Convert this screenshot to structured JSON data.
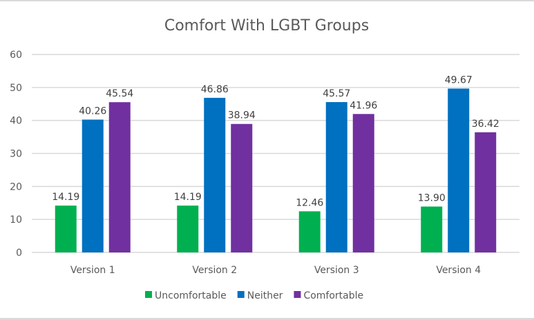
{
  "chart_data": {
    "type": "bar",
    "title": "Comfort With LGBT Groups",
    "xlabel": "",
    "ylabel": "",
    "categories": [
      "Version 1",
      "Version 2",
      "Version 3",
      "Version 4"
    ],
    "series": [
      {
        "name": "Uncomfortable",
        "color": "#00b050",
        "values": [
          14.19,
          14.19,
          12.46,
          13.9
        ],
        "labels": [
          "14.19",
          "14.19",
          "12.46",
          "13.90"
        ]
      },
      {
        "name": "Neither",
        "color": "#0070c0",
        "values": [
          40.26,
          46.86,
          45.57,
          49.67
        ],
        "labels": [
          "40.26",
          "46.86",
          "45.57",
          "49.67"
        ]
      },
      {
        "name": "Comfortable",
        "color": "#7030a0",
        "values": [
          45.54,
          38.94,
          41.96,
          36.42
        ],
        "labels": [
          "45.54",
          "38.94",
          "41.96",
          "36.42"
        ]
      }
    ],
    "ylim": [
      0,
      60
    ],
    "yticks": [
      "0",
      "10",
      "20",
      "30",
      "40",
      "50",
      "60"
    ],
    "grid": true,
    "legend_position": "bottom"
  }
}
